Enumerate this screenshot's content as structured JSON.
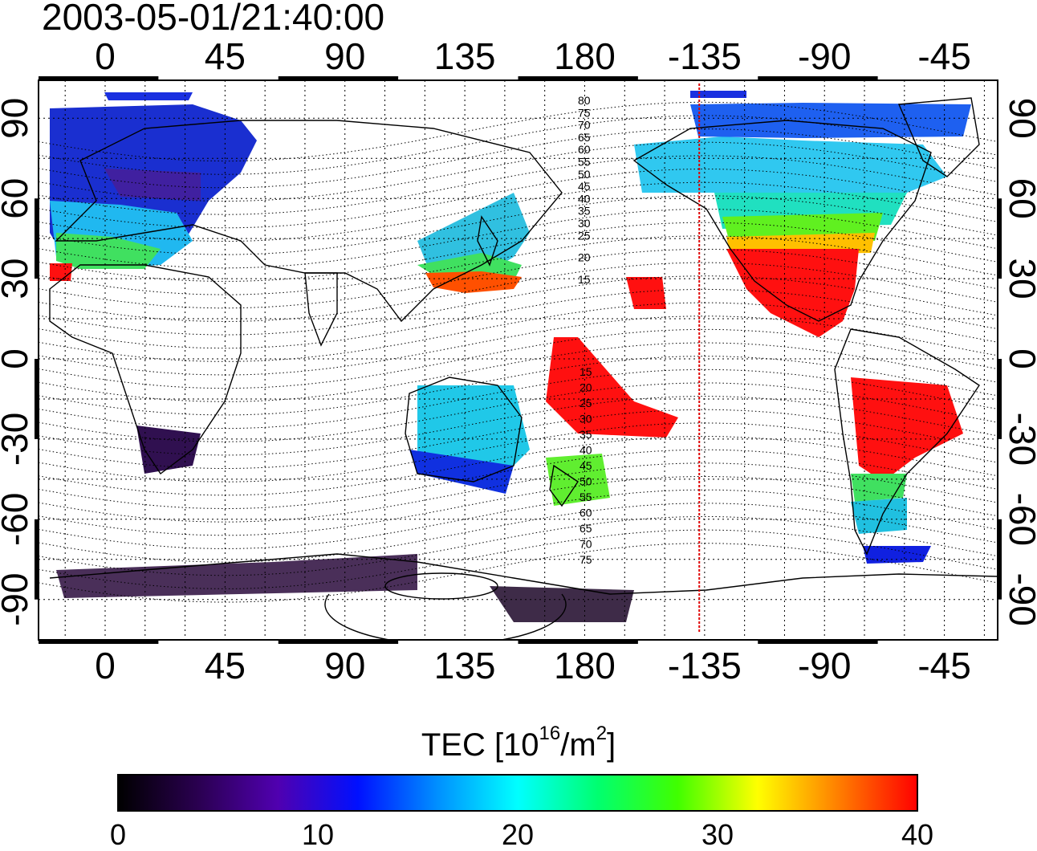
{
  "title": "2003-05-01/21:40:00",
  "map": {
    "lon_ticks": [
      "0",
      "45",
      "90",
      "135",
      "180",
      "-135",
      "-90",
      "-45"
    ],
    "lat_ticks": [
      "90",
      "60",
      "30",
      "0",
      "-30",
      "-60",
      "-90"
    ],
    "marker_longitude": -137,
    "marker_color": "#e00000",
    "mlat_north_labels": [
      "80",
      "75",
      "70",
      "65",
      "60",
      "55",
      "50",
      "45",
      "40",
      "35",
      "30",
      "25",
      "20",
      "15"
    ],
    "mlat_south_labels": [
      "15",
      "20",
      "25",
      "30",
      "35",
      "40",
      "45",
      "50",
      "55",
      "60",
      "65",
      "70",
      "75"
    ]
  },
  "colorbar": {
    "label_main": "TEC  [10",
    "label_exp1": "16",
    "label_mid": "/m",
    "label_exp2": "2",
    "label_end": "]",
    "ticks": [
      "0",
      "10",
      "20",
      "30",
      "40"
    ],
    "range": [
      0,
      40
    ],
    "stops": [
      "#000000",
      "#2a0050",
      "#5000b0",
      "#0010ff",
      "#0090ff",
      "#00ffff",
      "#00ff70",
      "#40ff00",
      "#ffff00",
      "#ff8000",
      "#ff0000"
    ]
  }
}
